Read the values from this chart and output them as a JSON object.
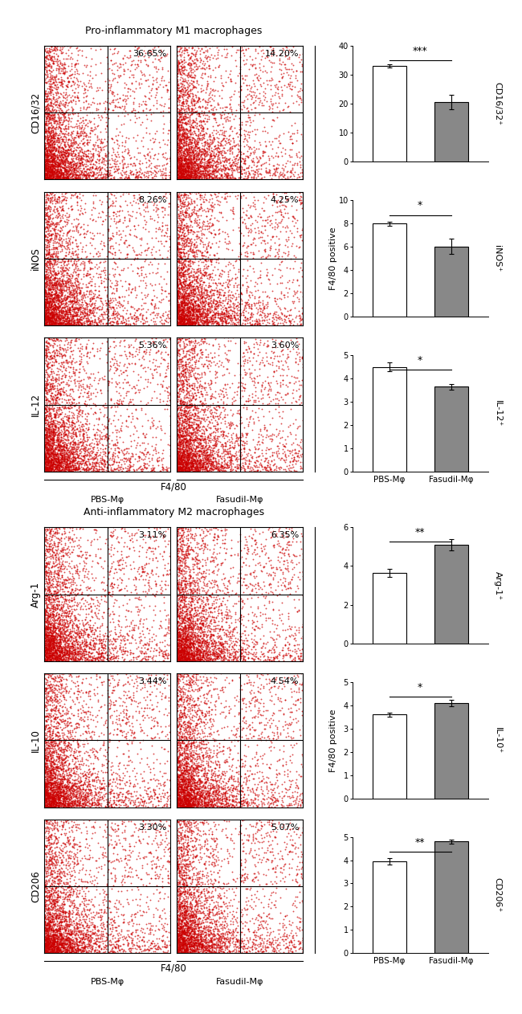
{
  "title_top": "Pro-inflammatory M1 macrophages",
  "title_bottom": "Anti-inflammatory M2 macrophages",
  "top_flow": {
    "labels_y": [
      "CD16/32",
      "iNOS",
      "IL-12"
    ],
    "percentages_left": [
      "36.65%",
      "8.26%",
      "5.36%"
    ],
    "percentages_right": [
      "14.20%",
      "4.25%",
      "3.60%"
    ]
  },
  "bottom_flow": {
    "labels_y": [
      "Arg-1",
      "IL-10",
      "CD206"
    ],
    "percentages_left": [
      "3.11%",
      "3.44%",
      "3.30%"
    ],
    "percentages_right": [
      "6.35%",
      "4.54%",
      "5.07%"
    ]
  },
  "top_bars": [
    {
      "ylabel": "CD16/32⁺",
      "ylim": [
        0,
        40
      ],
      "yticks": [
        0,
        10,
        20,
        30,
        40
      ],
      "pbs_val": 33.0,
      "pbs_err": 0.6,
      "fas_val": 20.5,
      "fas_err": 2.5,
      "sig": "***"
    },
    {
      "ylabel": "iNOS⁺",
      "ylim": [
        0,
        10
      ],
      "yticks": [
        0,
        2,
        4,
        6,
        8,
        10
      ],
      "pbs_val": 8.0,
      "pbs_err": 0.2,
      "fas_val": 6.05,
      "fas_err": 0.65,
      "sig": "*"
    },
    {
      "ylabel": "IL-12⁺",
      "ylim": [
        0,
        5
      ],
      "yticks": [
        0,
        1,
        2,
        3,
        4,
        5
      ],
      "pbs_val": 4.5,
      "pbs_err": 0.18,
      "fas_val": 3.65,
      "fas_err": 0.12,
      "sig": "*"
    }
  ],
  "bottom_bars": [
    {
      "ylabel": "Arg-1⁺",
      "ylim": [
        0,
        6
      ],
      "yticks": [
        0,
        2,
        4,
        6
      ],
      "pbs_val": 3.65,
      "pbs_err": 0.22,
      "fas_val": 5.1,
      "fas_err": 0.28,
      "sig": "**"
    },
    {
      "ylabel": "IL-10⁺",
      "ylim": [
        0,
        5
      ],
      "yticks": [
        0,
        1,
        2,
        3,
        4,
        5
      ],
      "pbs_val": 3.6,
      "pbs_err": 0.1,
      "fas_val": 4.1,
      "fas_err": 0.13,
      "sig": "*"
    },
    {
      "ylabel": "CD206⁺",
      "ylim": [
        0,
        5
      ],
      "yticks": [
        0,
        1,
        2,
        3,
        4,
        5
      ],
      "pbs_val": 3.95,
      "pbs_err": 0.13,
      "fas_val": 4.8,
      "fas_err": 0.09,
      "sig": "**"
    }
  ],
  "pbs_color": "white",
  "fas_color": "#888888",
  "bar_edge_color": "black",
  "dot_color": "#cc0000",
  "bg_color": "white",
  "x_labels": [
    "PBS-Mφ",
    "Fasudil-Mφ"
  ],
  "scatter_seed": 42
}
